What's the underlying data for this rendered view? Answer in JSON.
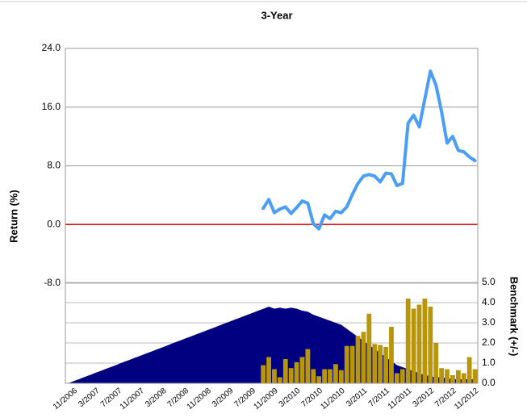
{
  "chart_data": {
    "type": "combo",
    "title": "3-Year",
    "y_label": "Return (%)",
    "y2_label": "Benchmark (+/-)",
    "categories": [
      "11/2006",
      null,
      null,
      null,
      "3/2007",
      null,
      null,
      null,
      "7/2007",
      null,
      null,
      null,
      "11/2007",
      null,
      null,
      null,
      "3/2008",
      null,
      null,
      null,
      "7/2008",
      null,
      null,
      null,
      "11/2008",
      null,
      null,
      null,
      "3/2009",
      null,
      null,
      null,
      "7/2009",
      null,
      null,
      null,
      "11/2009",
      null,
      null,
      null,
      "3/2010",
      null,
      null,
      null,
      "7/2010",
      null,
      null,
      null,
      "11/2010",
      null,
      null,
      null,
      "3/2011",
      null,
      null,
      null,
      "7/2011",
      null,
      null,
      null,
      "11/2011",
      null,
      null,
      null,
      "3/2012",
      null,
      null,
      null,
      "7/2012",
      null,
      null,
      null,
      "11/2012",
      null
    ],
    "ylim": [
      -21.65,
      24
    ],
    "yticks": [
      {
        "value": 24,
        "label": "24.0"
      },
      {
        "value": 16,
        "label": "16.0"
      },
      {
        "value": 8,
        "label": "8.0"
      },
      {
        "value": 0,
        "label": "0.0"
      },
      {
        "value": -8,
        "label": "-8.0"
      }
    ],
    "y2lim": [
      0,
      16.6
    ],
    "y2ticks": [
      {
        "value": 5,
        "label": "5.0"
      },
      {
        "value": 4,
        "label": "4.0"
      },
      {
        "value": 3,
        "label": "3.0"
      },
      {
        "value": 2,
        "label": "2.0"
      },
      {
        "value": 1,
        "label": "1.0"
      },
      {
        "value": 0,
        "label": "0.0"
      }
    ],
    "grid": true,
    "reference_line": {
      "value": 0,
      "color": "#d40000"
    },
    "series": [
      {
        "type": "area",
        "color": "#000080",
        "axis": "y2",
        "values": [
          0,
          0.11,
          0.21,
          0.32,
          0.42,
          0.53,
          0.63,
          0.74,
          0.84,
          0.95,
          1.06,
          1.16,
          1.27,
          1.37,
          1.48,
          1.58,
          1.69,
          1.79,
          1.9,
          2.01,
          2.11,
          2.22,
          2.32,
          2.43,
          2.53,
          2.64,
          2.74,
          2.85,
          2.96,
          3.06,
          3.17,
          3.27,
          3.38,
          3.48,
          3.59,
          3.69,
          3.8,
          3.7,
          3.75,
          3.7,
          3.75,
          3.7,
          3.6,
          3.55,
          3.4,
          3.3,
          3.2,
          3.1,
          3.0,
          2.9,
          2.7,
          2.5,
          2.3,
          2.1,
          1.9,
          1.7,
          1.5,
          1.3,
          1.1,
          0.9,
          0.8,
          0.7,
          0.6,
          0.5,
          0.4,
          0.35,
          0.3,
          0.3,
          0.25,
          0.2,
          0.2,
          0.2,
          0.2,
          0.2
        ]
      },
      {
        "type": "bar",
        "color": "#b8960c",
        "axis": "y2",
        "values": [
          null,
          null,
          null,
          null,
          null,
          null,
          null,
          null,
          null,
          null,
          null,
          null,
          null,
          null,
          null,
          null,
          null,
          null,
          null,
          null,
          null,
          null,
          null,
          null,
          null,
          null,
          null,
          null,
          null,
          null,
          null,
          null,
          null,
          null,
          null,
          0.9,
          1.3,
          0.7,
          0.3,
          1.2,
          0.75,
          1.05,
          1.3,
          1.7,
          0.7,
          0.35,
          0.7,
          0.7,
          0.95,
          0.65,
          1.85,
          1.85,
          2.35,
          2.55,
          3.45,
          1.95,
          1.9,
          1.8,
          2.8,
          0.5,
          0.7,
          4.2,
          3.7,
          3.9,
          4.2,
          3.8,
          2.0,
          0.75,
          0.7,
          0.4,
          0.65,
          0.5,
          1.3,
          0.7
        ]
      },
      {
        "type": "line",
        "color": "#4a9ff5",
        "values": [
          null,
          null,
          null,
          null,
          null,
          null,
          null,
          null,
          null,
          null,
          null,
          null,
          null,
          null,
          null,
          null,
          null,
          null,
          null,
          null,
          null,
          null,
          null,
          null,
          null,
          null,
          null,
          null,
          null,
          null,
          null,
          null,
          null,
          null,
          null,
          2.2,
          3.4,
          1.6,
          2.1,
          2.4,
          1.5,
          2.3,
          3.2,
          2.9,
          0.1,
          -0.6,
          1.3,
          0.8,
          1.8,
          1.6,
          2.4,
          4.1,
          5.6,
          6.6,
          6.8,
          6.6,
          5.8,
          7.0,
          6.9,
          5.3,
          5.6,
          13.8,
          14.9,
          13.3,
          17.1,
          20.9,
          19.0,
          15.4,
          11.1,
          12.0,
          10.1,
          9.9,
          9.2,
          8.7
        ]
      }
    ]
  }
}
